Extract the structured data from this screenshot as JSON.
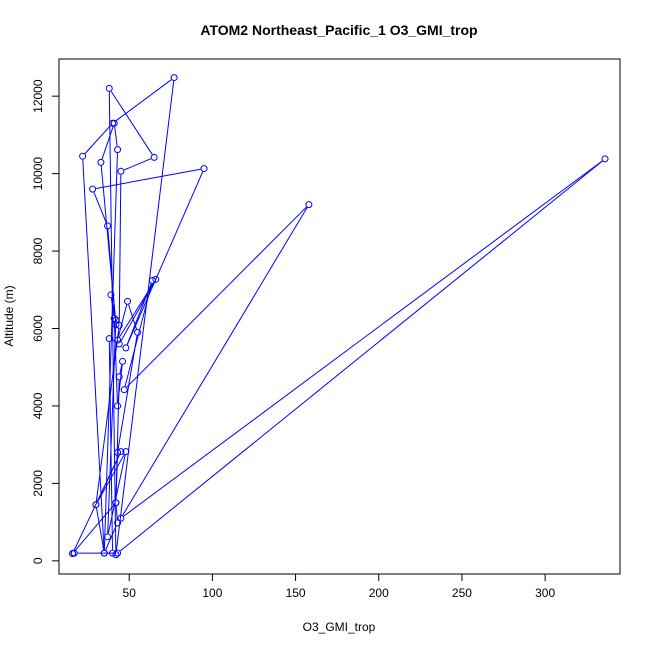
{
  "colors": {
    "series": "#0000ff",
    "axis": "#000000",
    "background": "#ffffff"
  },
  "chart_data": {
    "type": "scatter",
    "title": "ATOM2 Northeast_Pacific_1 O3_GMI_trop",
    "xlabel": "O3_GMI_trop",
    "ylabel": "Altitude (m)",
    "xlim": [
      7.8,
      345
    ],
    "ylim": [
      -340,
      12960
    ],
    "xticks": [
      50,
      100,
      150,
      200,
      250,
      300
    ],
    "yticks": [
      0,
      2000,
      4000,
      6000,
      8000,
      10000,
      12000
    ],
    "grid": false,
    "legend": "none",
    "marker": "open-circle",
    "connect_points": true,
    "series": [
      {
        "x": [
          16,
          17,
          43,
          336,
          45,
          158,
          47,
          64,
          48,
          95,
          28,
          37,
          42,
          33,
          41,
          43,
          35,
          22,
          40,
          77,
          42,
          38,
          65,
          45,
          44,
          30,
          45,
          16,
          42,
          44,
          46,
          43,
          41,
          39,
          42,
          37,
          48,
          30,
          35,
          43,
          42,
          43,
          55,
          49,
          43,
          66,
          44,
          38,
          40
        ],
        "y": [
          190,
          200,
          200,
          10380,
          1100,
          9200,
          4420,
          7240,
          5500,
          10130,
          9600,
          8650,
          6100,
          10290,
          11300,
          10620,
          200,
          10450,
          11300,
          12480,
          160,
          12200,
          10420,
          10060,
          6080,
          1450,
          2820,
          190,
          1500,
          4750,
          5150,
          4000,
          6260,
          6870,
          6220,
          620,
          2820,
          1450,
          200,
          980,
          1500,
          2800,
          5900,
          6700,
          5700,
          7270,
          5600,
          5740,
          200
        ]
      }
    ]
  }
}
